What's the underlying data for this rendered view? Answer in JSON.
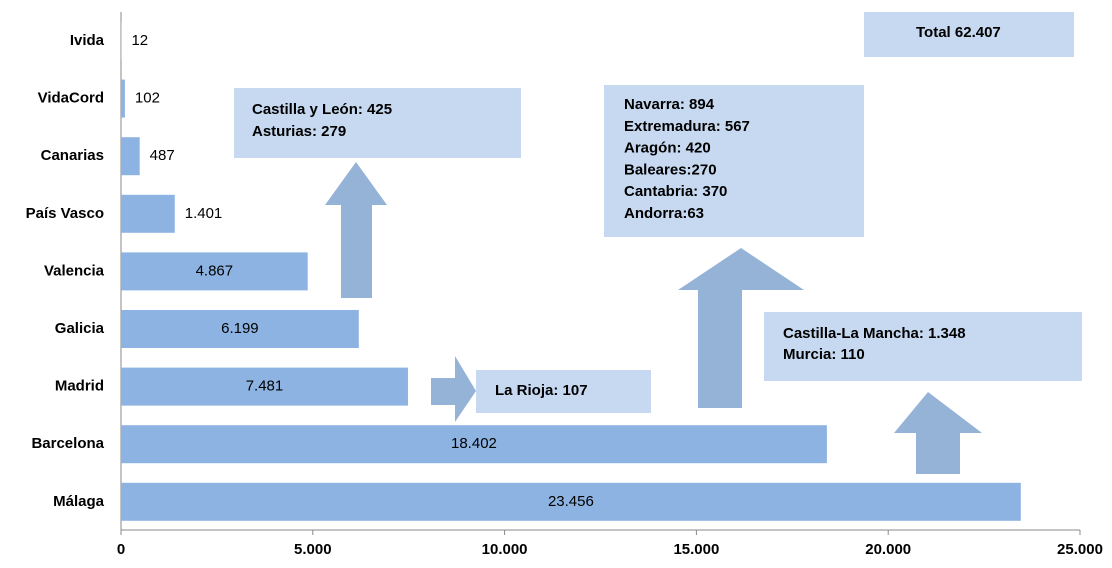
{
  "chart_data": {
    "type": "barh",
    "categories": [
      "Ivida",
      "VidaCord",
      "Canarias",
      "País Vasco",
      "Valencia",
      "Galicia",
      "Madrid",
      "Barcelona",
      "Málaga"
    ],
    "values": [
      12,
      102,
      487,
      1401,
      4867,
      6199,
      7481,
      18402,
      23456
    ],
    "value_labels": [
      "12",
      "102",
      "487",
      "1.401",
      "4.867",
      "6.199",
      "7.481",
      "18.402",
      "23.456"
    ],
    "color": "#8db3e2",
    "xlim": [
      0,
      25000
    ],
    "xticks": [
      0,
      {
        "value": 5000,
        "label": "5.000"
      },
      {
        "value": 10000,
        "label": "10.000"
      },
      {
        "value": 15000,
        "label": "15.000"
      },
      {
        "value": 20000,
        "label": "20.000"
      },
      {
        "value": 25000,
        "label": "25.000"
      }
    ],
    "annotations": [
      {
        "lines": [
          "Castilla y León: 425",
          "Asturias: 279"
        ]
      },
      {
        "lines": [
          "Navarra: 894",
          "Extremadura: 567",
          "Aragón: 420",
          "Baleares:270",
          "Cantabria: 370",
          "Andorra:63"
        ]
      },
      {
        "lines": [
          "Castilla-La Mancha: 1.348",
          "Murcia: 110"
        ]
      },
      {
        "lines": [
          "La Rioja: 107"
        ]
      },
      {
        "lines": [
          "Total 62.407"
        ]
      }
    ]
  }
}
